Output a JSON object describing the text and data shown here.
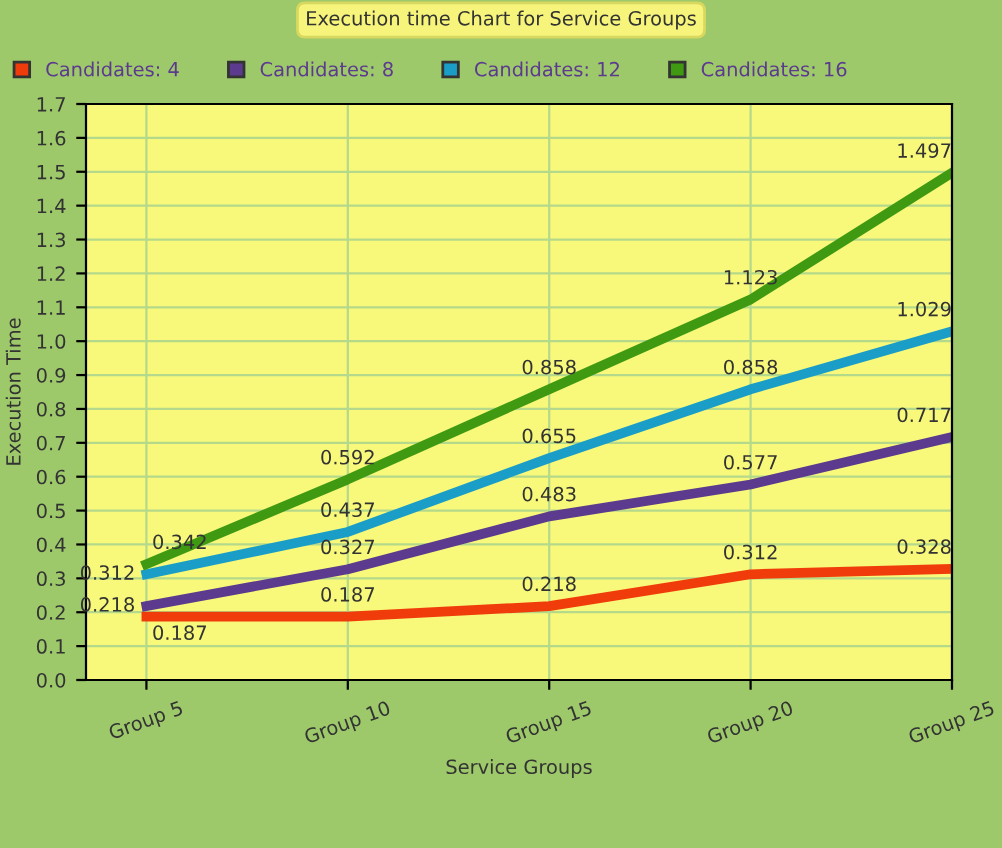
{
  "chart_data": {
    "type": "line",
    "title": "Execution time Chart for Service Groups",
    "xlabel": "Service Groups",
    "ylabel": "Execution Time",
    "categories": [
      "Group 5",
      "Group 10",
      "Group 15",
      "Group 20",
      "Group 25"
    ],
    "series": [
      {
        "name": "Candidates: 4",
        "color": "#f03c0a",
        "values": [
          0.187,
          0.187,
          0.218,
          0.312,
          0.328
        ]
      },
      {
        "name": "Candidates: 8",
        "color": "#5c3a8e",
        "values": [
          0.218,
          0.327,
          0.483,
          0.577,
          0.717
        ]
      },
      {
        "name": "Candidates: 12",
        "color": "#1a9ec8",
        "values": [
          0.312,
          0.437,
          0.655,
          0.858,
          1.029
        ]
      },
      {
        "name": "Candidates: 16",
        "color": "#3f9a12",
        "values": [
          0.342,
          0.592,
          0.858,
          1.123,
          1.497
        ]
      }
    ],
    "ylim": [
      0,
      1.7
    ],
    "yticks": [
      {
        "value": 0,
        "label": "0.0"
      },
      0.1,
      0.2,
      0.3,
      0.4,
      0.5,
      0.6,
      0.7,
      0.8,
      0.9,
      {
        "value": 1,
        "label": "1.0"
      },
      1.1,
      1.2,
      1.3,
      1.4,
      1.5,
      1.6,
      1.7
    ],
    "grid": true,
    "legend": "top",
    "data_labels": true,
    "marker": "none",
    "line_style": "solid"
  }
}
